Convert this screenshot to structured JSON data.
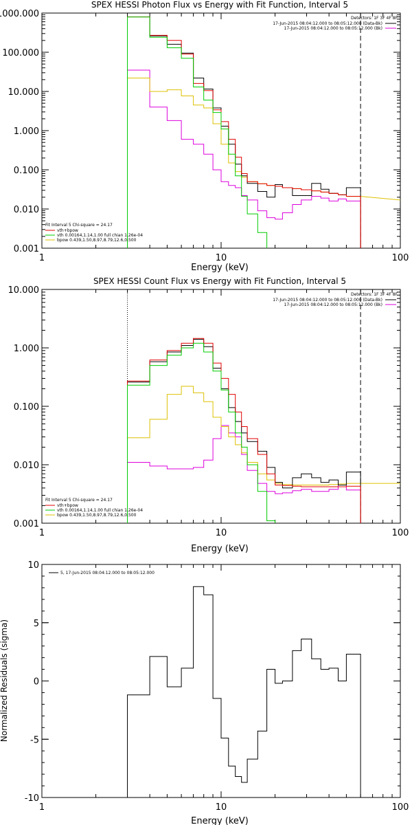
{
  "colors": {
    "data": "#000000",
    "total": "#e00000",
    "vth": "#00cc00",
    "bpow": "#ddc000",
    "bk": "#dd00dd"
  },
  "chart_data": [
    {
      "type": "line",
      "title": "SPEX HESSI Photon Flux vs Energy with Fit Function, Interval 5",
      "xlabel": "Energy (keV)",
      "ylabel": "",
      "xscale": "log",
      "yscale": "log",
      "xlim": [
        1,
        100
      ],
      "ylim": [
        0.001,
        1000
      ],
      "x_ticks": [
        "1",
        "10",
        "100"
      ],
      "y_ticks": [
        "1000.000",
        "100.000",
        "10.000",
        "1.000",
        "0.100",
        "0.010",
        "0.001"
      ],
      "vlines": {
        "dotted": 3,
        "dashed": 60
      },
      "legend_right": {
        "header": "Detectors: 1F 3F 4F 8F",
        "entries": [
          {
            "label": "17-Jun-2015 08:04:12.000 to 08:05:12.000 (Data-Bk)",
            "color_key": "data"
          },
          {
            "label": "17-Jun-2015 08:04:12.000 to 08:05:12.000 (Bk)",
            "color_key": "bk"
          }
        ]
      },
      "legend_left": {
        "header": "Fit Interval 5   Chi-square = 24.17",
        "entries": [
          {
            "label": "vth+bpow",
            "color_key": "total"
          },
          {
            "label": "vth 0.00164,1.14,1.00  full chian 1.26e-04",
            "color_key": "vth"
          },
          {
            "label": "bpow 0.439,1.50,8.97,8.79,12.6,0.500",
            "color_key": "bpow"
          }
        ]
      },
      "bin_edges": [
        3,
        4,
        5,
        6,
        7,
        8,
        9,
        10,
        11,
        12,
        13,
        14,
        16,
        18,
        20,
        22,
        25,
        28,
        32,
        36,
        40,
        45,
        50,
        60
      ],
      "series": [
        {
          "color_key": "data",
          "values": [
            800,
            260,
            160,
            95,
            22,
            11.5,
            3.8,
            1.3,
            0.45,
            0.14,
            0.07,
            0.045,
            0.028,
            0.02,
            0.042,
            0.035,
            0.022,
            0.022,
            0.045,
            0.032,
            0.025,
            0.023,
            0.035
          ]
        },
        {
          "color_key": "total",
          "values": [
            800,
            270,
            200,
            90,
            16,
            10.5,
            3.4,
            1.7,
            0.6,
            0.21,
            0.08,
            0.05,
            0.044,
            0.04,
            0.038,
            0.035,
            0.033,
            0.031,
            0.029,
            0.027,
            0.025,
            0.023,
            0.021
          ]
        },
        {
          "color_key": "vth",
          "values": [
            790,
            240,
            130,
            70,
            13,
            6,
            2.9,
            1.1,
            0.25,
            0.07,
            0.021,
            0.0075,
            0.0025,
            0.0009
          ]
        },
        {
          "color_key": "bpow",
          "values": [
            22,
            10,
            11,
            7.7,
            4.5,
            3.8,
            1.5,
            0.45,
            0.15,
            0.09,
            0.065,
            0.05,
            0.044,
            0.04,
            0.038,
            0.035,
            0.033,
            0.031,
            0.029,
            0.027,
            0.025,
            0.023,
            0.021
          ]
        },
        {
          "color_key": "bk",
          "values": [
            35,
            4,
            1.8,
            0.6,
            0.45,
            0.25,
            0.1,
            0.05,
            0.04,
            0.035,
            0.022,
            0.017,
            0.009,
            0.006,
            0.0055,
            0.008,
            0.013,
            0.017,
            0.021,
            0.019,
            0.016,
            0.018,
            0.016
          ]
        }
      ],
      "bpow_tail": {
        "x": [
          60,
          100
        ],
        "values": [
          0.021,
          0.017
        ]
      }
    },
    {
      "type": "line",
      "title": "SPEX HESSI Count Flux vs Energy with Fit Function, Interval 5",
      "xlabel": "Energy (keV)",
      "ylabel": "",
      "xscale": "log",
      "yscale": "log",
      "xlim": [
        1,
        100
      ],
      "ylim": [
        0.001,
        10
      ],
      "x_ticks": [
        "1",
        "10",
        "100"
      ],
      "y_ticks": [
        "10.000",
        "1.000",
        "0.100",
        "0.010",
        "0.001"
      ],
      "vlines": {
        "dotted": 3,
        "dashed": 60
      },
      "legend_right": {
        "header": "Detectors: 1F 3F 4F 8F",
        "entries": [
          {
            "label": "17-Jun-2015 08:04:12.000 to 08:05:12.000 (Data-Bk)",
            "color_key": "data"
          },
          {
            "label": "17-Jun-2015 08:04:12.000 to 08:05:12.000 (Bk)",
            "color_key": "bk"
          }
        ]
      },
      "legend_left": {
        "header": "Fit Interval 5   Chi-square = 24.17",
        "entries": [
          {
            "label": "vth+bpow",
            "color_key": "total"
          },
          {
            "label": "vth 0.00164,1.14,1.00  full chian 1.26e-04",
            "color_key": "vth"
          },
          {
            "label": "bpow 0.439,1.50,8.97,8.79,12.6,0.500",
            "color_key": "bpow"
          }
        ]
      },
      "bin_edges": [
        3,
        4,
        5,
        6,
        7,
        8,
        9,
        10,
        11,
        12,
        13,
        14,
        16,
        18,
        20,
        22,
        25,
        28,
        32,
        36,
        40,
        45,
        50,
        60
      ],
      "series": [
        {
          "color_key": "data",
          "values": [
            0.26,
            0.58,
            0.85,
            1.1,
            1.4,
            1.05,
            0.45,
            0.2,
            0.095,
            0.055,
            0.035,
            0.025,
            0.017,
            0.009,
            0.005,
            0.004,
            0.006,
            0.007,
            0.006,
            0.005,
            0.0055,
            0.0045,
            0.0075
          ]
        },
        {
          "color_key": "total",
          "values": [
            0.27,
            0.62,
            0.9,
            1.2,
            1.45,
            1.2,
            0.55,
            0.3,
            0.16,
            0.08,
            0.045,
            0.028,
            0.015,
            0.007,
            0.0045,
            0.0044,
            0.0043,
            0.0042,
            0.0042,
            0.0042,
            0.0042,
            0.0042,
            0.0043
          ]
        },
        {
          "color_key": "vth",
          "values": [
            0.23,
            0.5,
            0.75,
            1.0,
            1.2,
            0.85,
            0.4,
            0.19,
            0.08,
            0.035,
            0.02,
            0.01,
            0.0035,
            0.0011
          ]
        },
        {
          "color_key": "bpow",
          "values": [
            0.029,
            0.06,
            0.16,
            0.22,
            0.17,
            0.12,
            0.065,
            0.045,
            0.03,
            0.022,
            0.016,
            0.011,
            0.007,
            0.0055,
            0.0048,
            0.0046,
            0.0045,
            0.0045,
            0.0045,
            0.0045,
            0.0046,
            0.0047,
            0.0048
          ]
        },
        {
          "color_key": "bk",
          "values": [
            0.011,
            0.0095,
            0.0085,
            0.0085,
            0.009,
            0.012,
            0.028,
            0.047,
            0.035,
            0.03,
            0.015,
            0.008,
            0.0048,
            0.0035,
            0.0032,
            0.0033,
            0.0036,
            0.0038,
            0.0035,
            0.0035,
            0.0038,
            0.0045,
            0.0037
          ]
        }
      ],
      "bpow_tail": {
        "x": [
          60,
          100
        ],
        "values": [
          0.0048,
          0.0048
        ]
      }
    },
    {
      "type": "line",
      "title": "",
      "xlabel": "Energy (keV)",
      "ylabel": "Normalized Residuals (sigma)",
      "xscale": "log",
      "yscale": "linear",
      "xlim": [
        1,
        100
      ],
      "ylim": [
        -10,
        10
      ],
      "x_ticks": [
        "1",
        "10",
        "100"
      ],
      "y_ticks": [
        "10",
        "5",
        "0",
        "-5",
        "-10"
      ],
      "legend_entries": [
        {
          "label": "5, 17-Jun-2015 08:04:12.000 to 08:05:12.000",
          "color_key": "data"
        }
      ],
      "bin_edges": [
        3,
        4,
        5,
        6,
        7,
        8,
        9,
        10,
        11,
        12,
        13,
        14,
        16,
        18,
        20,
        22,
        25,
        28,
        32,
        36,
        40,
        45,
        50,
        60
      ],
      "values": [
        -1.2,
        2.1,
        -0.5,
        1.1,
        8.1,
        7.4,
        -1.5,
        -4.9,
        -7.3,
        -8.2,
        -8.7,
        -6.7,
        -4.3,
        1.0,
        -0.2,
        0.0,
        2.6,
        3.6,
        1.9,
        1.0,
        1.1,
        0.0,
        2.3
      ]
    }
  ]
}
